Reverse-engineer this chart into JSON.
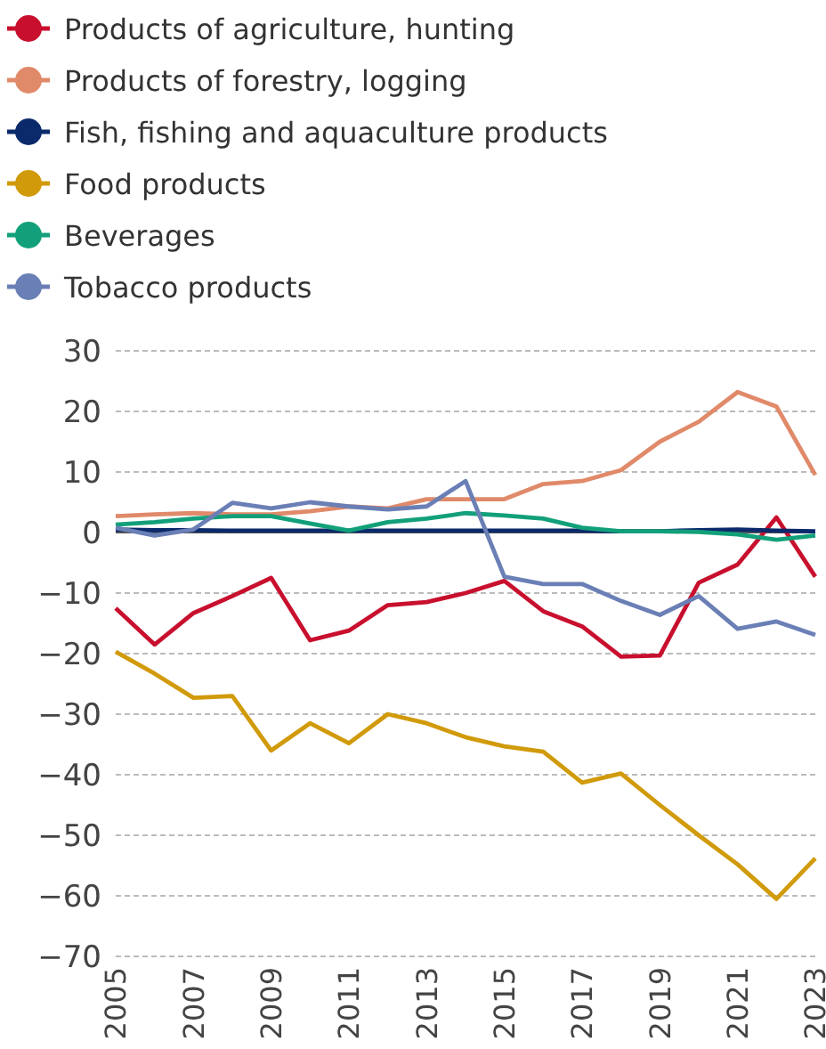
{
  "chart_data": {
    "type": "line",
    "x": [
      2005,
      2006,
      2007,
      2008,
      2009,
      2010,
      2011,
      2012,
      2013,
      2014,
      2015,
      2016,
      2017,
      2018,
      2019,
      2020,
      2021,
      2022,
      2023
    ],
    "series": [
      {
        "name": "Products of agriculture, hunting",
        "color": "#c8102e",
        "values": [
          -12.5,
          -18.5,
          -13.3,
          -10.5,
          -7.5,
          -17.8,
          -16.2,
          -12,
          -11.5,
          -10,
          -8,
          -13,
          -15.5,
          -20.5,
          -20.3,
          -8.3,
          -5.3,
          2.5,
          -7.3
        ]
      },
      {
        "name": "Products of forestry, logging",
        "color": "#e08a6a",
        "values": [
          2.7,
          3,
          3.2,
          3,
          3,
          3.5,
          4.3,
          4,
          5.5,
          5.5,
          5.5,
          8,
          8.5,
          10.3,
          15,
          18.3,
          23.2,
          20.8,
          9.5
        ]
      },
      {
        "name": "Fish, fishing and aquaculture products",
        "color": "#0b2a6b",
        "values": [
          0.5,
          0.4,
          0.4,
          0.3,
          0.3,
          0.3,
          0.3,
          0.3,
          0.3,
          0.3,
          0.3,
          0.3,
          0.3,
          0.2,
          0.2,
          0.4,
          0.5,
          0.3,
          0.2
        ]
      },
      {
        "name": "Food products",
        "color": "#d19a0a",
        "values": [
          -19.7,
          -23.3,
          -27.3,
          -27,
          -36,
          -31.5,
          -34.8,
          -30,
          -31.5,
          -33.8,
          -35.3,
          -36.2,
          -41.3,
          -39.8,
          -45,
          -50,
          -54.8,
          -60.5,
          -53.8
        ]
      },
      {
        "name": "Beverages",
        "color": "#12a07a",
        "values": [
          1.3,
          1.7,
          2.3,
          2.7,
          2.7,
          1.5,
          0.3,
          1.7,
          2.3,
          3.2,
          2.8,
          2.3,
          0.8,
          0.2,
          0.2,
          0.1,
          -0.3,
          -1.2,
          -0.5
        ]
      },
      {
        "name": "Tobacco products",
        "color": "#6a7fb5",
        "values": [
          0.8,
          -0.5,
          0.5,
          4.9,
          4,
          5,
          4.3,
          3.8,
          4.3,
          8.5,
          -7.3,
          -8.5,
          -8.5,
          -11.3,
          -13.6,
          -10.5,
          -15.9,
          -14.7,
          -16.9
        ]
      }
    ],
    "xlim": [
      2005,
      2023
    ],
    "xticks": [
      2005,
      2007,
      2009,
      2011,
      2013,
      2015,
      2017,
      2019,
      2021,
      2023
    ],
    "ylim": [
      -70,
      30
    ],
    "yticks": [
      -70,
      -60,
      -50,
      -40,
      -30,
      -20,
      -10,
      0,
      10,
      20,
      30
    ],
    "grid": "y",
    "legend": "top",
    "marker": "none",
    "line_style": "solid"
  }
}
